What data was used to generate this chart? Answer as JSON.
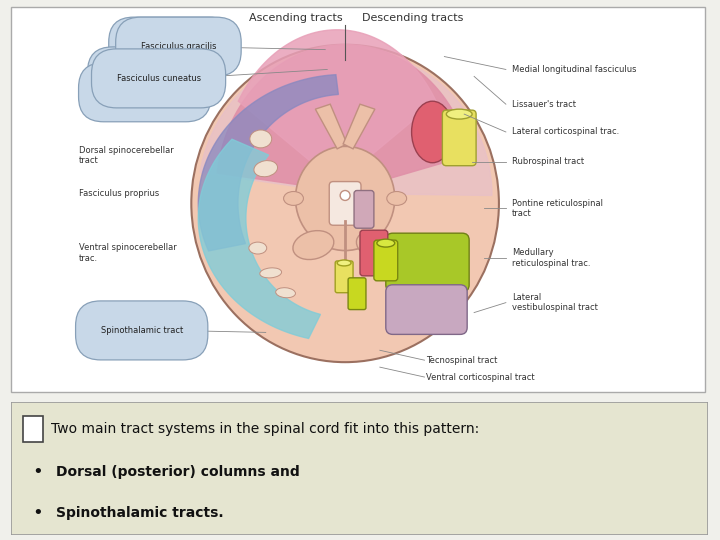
{
  "bg_color": "#f0f0eb",
  "diagram_bg": "#ffffff",
  "text_box_bg": "#e5e5d0",
  "text_box_border": "#999999",
  "title_line1": "Two main tract systems in the spinal cord fit into this pattern:",
  "bullet1": "Dorsal (posterior) columns and",
  "bullet2": "Spinothalamic tracts.",
  "ascending_label": "Ascending tracts",
  "descending_label": "Descending tracts",
  "cord_outer_color": "#f2c8b2",
  "cord_outer_edge": "#9b7060",
  "pink_dorsal_left": "#e8a0b8",
  "pink_dorsal_right": "#e0b8c8",
  "purple_left": "#8888c0",
  "cyan_left": "#80ccd8",
  "red_tract": "#e06070",
  "yellow_tract": "#e8e060",
  "green_tract": "#a8c828",
  "mauve_tract": "#c8a8c0",
  "gray_matter": "#ecc0a8",
  "gray_matter_edge": "#c09080",
  "label_box_color": "#c8d8e8",
  "label_box_edge": "#88a0b8",
  "fs_small": 6.0,
  "fs_label": 7.0
}
